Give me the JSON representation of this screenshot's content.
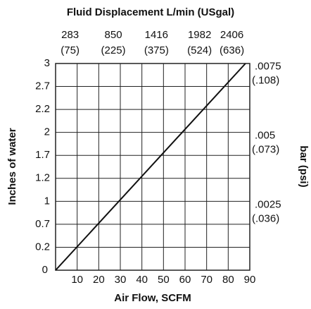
{
  "chart_data": {
    "type": "line",
    "title": "Fluid Displacement L/min (USgal)",
    "x_label": "Air Flow, SCFM",
    "y_label": "Inches of water",
    "y2_label": "bar (psi)",
    "x": [
      0,
      88
    ],
    "series": [
      {
        "color": "#111111",
        "values": [
          0,
          3.0
        ]
      }
    ],
    "xlim": [
      0,
      90
    ],
    "xticks": [
      10,
      20,
      30,
      40,
      50,
      60,
      70,
      80,
      90
    ],
    "ylim": [
      0,
      3.0
    ],
    "yticks": [
      0,
      0.2,
      0.7,
      1.0,
      1.2,
      1.7,
      2.0,
      2.2,
      2.7,
      3.0
    ],
    "x2lim": [
      0,
      2548.5
    ],
    "x2ticks": [
      283,
      850,
      1416,
      1982,
      2406
    ],
    "x2tick_sublabels": [
      "(75)",
      "(225)",
      "(375)",
      "(524)",
      "(636)"
    ],
    "y2lim": [
      0,
      0.00747
    ],
    "y2ticks": [
      {
        "value": 0.0025,
        "label": ".0025"
      },
      {
        "value": 0.005,
        "label": ".005"
      },
      {
        "value": 0.0075,
        "label": ".0075"
      }
    ],
    "y2tick_sublabels": [
      "(.036)",
      "(.073)",
      "(.108)"
    ],
    "grid": true
  }
}
